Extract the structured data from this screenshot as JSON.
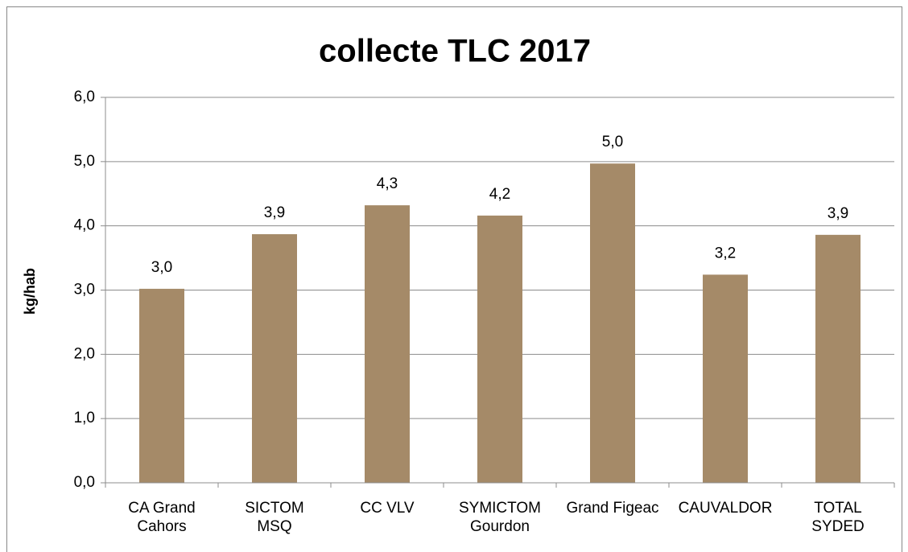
{
  "chart_data": {
    "type": "bar",
    "title": "collecte TLC 2017",
    "y_label": "kg/hab",
    "categories": [
      "CA Grand\nCahors",
      "SICTOM\nMSQ",
      "CC VLV",
      "SYMICTOM\nGourdon",
      "Grand Figeac",
      "CAUVALDOR",
      "TOTAL\nSYDED"
    ],
    "values": [
      3.02,
      3.87,
      4.32,
      4.16,
      4.97,
      3.24,
      3.86
    ],
    "value_labels": [
      "3,0",
      "3,9",
      "4,3",
      "4,2",
      "5,0",
      "3,2",
      "3,9"
    ],
    "color": "#a58a68",
    "ylim": [
      0,
      6
    ],
    "yticks": [
      {
        "value": 0,
        "label": "0,0"
      },
      {
        "value": 1,
        "label": "1,0"
      },
      {
        "value": 2,
        "label": "2,0"
      },
      {
        "value": 3,
        "label": "3,0"
      },
      {
        "value": 4,
        "label": "4,0"
      },
      {
        "value": 5,
        "label": "5,0"
      },
      {
        "value": 6,
        "label": "6,0"
      }
    ],
    "grid": true
  }
}
